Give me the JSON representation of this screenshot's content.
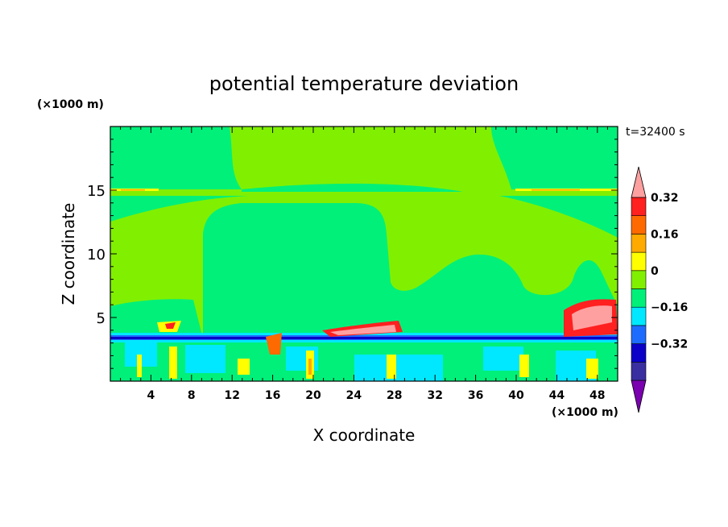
{
  "chart_data": {
    "type": "heatmap",
    "title": "potential temperature deviation",
    "time_label": "t=32400 s",
    "xlabel": "X coordinate",
    "ylabel": "Z coordinate",
    "x_unit": "(×1000 m)",
    "y_unit": "(×1000 m)",
    "xlim": [
      0,
      50
    ],
    "ylim": [
      0,
      20
    ],
    "x_ticks": [
      "4",
      "8",
      "12",
      "16",
      "20",
      "24",
      "28",
      "32",
      "36",
      "40",
      "44",
      "48"
    ],
    "y_ticks": [
      "5",
      "10",
      "15"
    ],
    "colorbar": {
      "levels": [
        -0.48,
        -0.4,
        -0.32,
        -0.24,
        -0.16,
        -0.08,
        0,
        0.08,
        0.16,
        0.24,
        0.32,
        0.4
      ],
      "tick_labels": [
        "0.32",
        "0.16",
        "0",
        "−0.16",
        "−0.32"
      ],
      "colors": [
        "#7a00b0",
        "#3a2fa0",
        "#0a00c8",
        "#1e6cff",
        "#00e8ff",
        "#00f07a",
        "#80f000",
        "#ffff00",
        "#ffaa00",
        "#ff6a00",
        "#ff2020",
        "#ffa0a0"
      ]
    },
    "regions": [
      {
        "desc": "upper background",
        "value": 0.04
      },
      {
        "desc": "dome x 9-29 z 4-14",
        "value": -0.04
      },
      {
        "desc": "dome x 32-44 z 4-10",
        "value": -0.04
      },
      {
        "desc": "layer near z 15",
        "value": 0.1
      },
      {
        "desc": "band near z 3.5",
        "value": -0.32
      },
      {
        "desc": "near-surface z 0-3",
        "value": -0.12
      }
    ]
  }
}
